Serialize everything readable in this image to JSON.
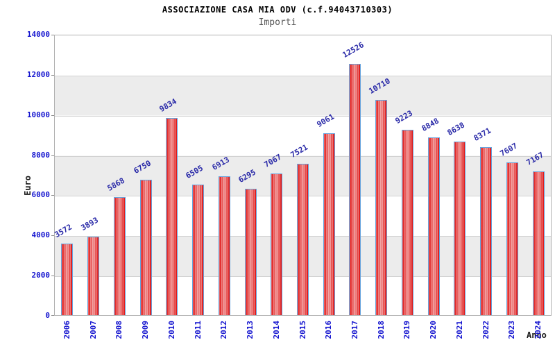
{
  "chart_data": {
    "type": "bar",
    "title": "ASSOCIAZIONE CASA MIA ODV (c.f.94043710303)",
    "subtitle": "Importi",
    "xlabel": "Anno",
    "ylabel": "Euro",
    "categories": [
      "2006",
      "2007",
      "2008",
      "2009",
      "2010",
      "2011",
      "2012",
      "2013",
      "2014",
      "2015",
      "2016",
      "2017",
      "2018",
      "2019",
      "2020",
      "2021",
      "2022",
      "2023",
      "2024"
    ],
    "values": [
      3572,
      3893,
      5868,
      6750,
      9834,
      6505,
      6913,
      6295,
      7067,
      7521,
      9061,
      12526,
      10710,
      9223,
      8848,
      8638,
      8371,
      7607,
      7167
    ],
    "ylim": [
      0,
      14000
    ],
    "ytick_step": 2000,
    "yticks": [
      0,
      2000,
      4000,
      6000,
      8000,
      10000,
      12000,
      14000
    ],
    "grid": true,
    "background_bands": true,
    "legend_position": "none",
    "colors": {
      "bar_fill_edge": "#df1414",
      "bar_fill_center": "#ef8d8d",
      "bar_border": "#66a3dd",
      "tick_label": "#1414cf",
      "value_label": "#2a2aa8",
      "band_gray": "#ececec",
      "gridline": "#d2d2d2",
      "title": "#000000",
      "subtitle": "#565656"
    }
  }
}
